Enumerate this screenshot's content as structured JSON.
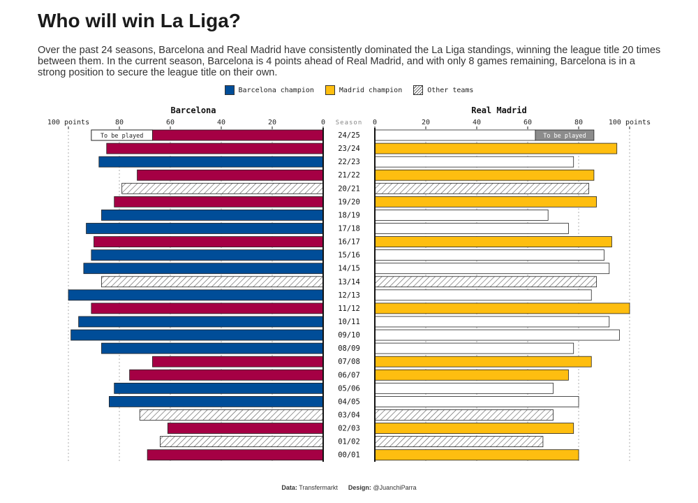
{
  "title": "Who will win La Liga?",
  "subtitle": "Over the past 24 seasons, Barcelona and Real Madrid have consistently dominated the La Liga standings, winning the league title 20 times between them. In the current season, Barcelona is 4 points ahead of Real Madrid, and with only 8 games remaining, Barcelona is in a strong position to secure the league title on their own.",
  "legend": [
    {
      "key": "barca",
      "label": "Barcelona champion"
    },
    {
      "key": "madrid",
      "label": "Madrid champion"
    },
    {
      "key": "other",
      "label": "Other teams"
    }
  ],
  "footer": {
    "data_label": "Data:",
    "data_value": "Transfermarkt",
    "design_label": "Design:",
    "design_value": "@JuanchiParra"
  },
  "colors": {
    "barca_champion": "#004d98",
    "barca_default": "#a50044",
    "madrid_champion": "#febe10",
    "madrid_default": "#ffffff",
    "pending": "#8c8c8c"
  },
  "chart_data": {
    "type": "bar",
    "left_title": "Barcelona",
    "right_title": "Real Madrid",
    "center_label": "Season",
    "left_ticks": [
      "100 points",
      "80",
      "60",
      "40",
      "20",
      "0"
    ],
    "right_ticks": [
      "0",
      "20",
      "40",
      "60",
      "80",
      "100 points"
    ],
    "tick_values": [
      100,
      80,
      60,
      40,
      20,
      0
    ],
    "xlim": [
      0,
      100
    ],
    "pending_label": "To be played",
    "seasons": [
      "24/25",
      "23/24",
      "22/23",
      "21/22",
      "20/21",
      "19/20",
      "18/19",
      "17/18",
      "16/17",
      "15/16",
      "14/15",
      "13/14",
      "12/13",
      "11/12",
      "10/11",
      "09/10",
      "08/09",
      "07/08",
      "06/07",
      "05/06",
      "04/05",
      "03/04",
      "02/03",
      "01/02",
      "00/01"
    ],
    "champion": [
      "",
      "madrid",
      "barca",
      "madrid",
      "other",
      "madrid",
      "barca",
      "barca",
      "madrid",
      "barca",
      "barca",
      "other",
      "barca",
      "madrid",
      "barca",
      "barca",
      "barca",
      "madrid",
      "madrid",
      "barca",
      "barca",
      "other",
      "madrid",
      "other",
      "madrid"
    ],
    "series": [
      {
        "name": "Barcelona",
        "values": [
          67,
          85,
          88,
          73,
          79,
          82,
          87,
          93,
          90,
          91,
          94,
          87,
          100,
          91,
          96,
          99,
          87,
          67,
          76,
          82,
          84,
          72,
          61,
          64,
          69
        ]
      },
      {
        "name": "Real Madrid",
        "values": [
          63,
          95,
          78,
          86,
          84,
          87,
          68,
          76,
          93,
          90,
          92,
          87,
          85,
          100,
          92,
          96,
          78,
          85,
          76,
          70,
          80,
          70,
          78,
          66,
          80
        ]
      }
    ],
    "pending": [
      {
        "series": "Barcelona",
        "season": "24/25",
        "upper": 91
      },
      {
        "series": "Real Madrid",
        "season": "24/25",
        "upper": 86
      }
    ]
  }
}
